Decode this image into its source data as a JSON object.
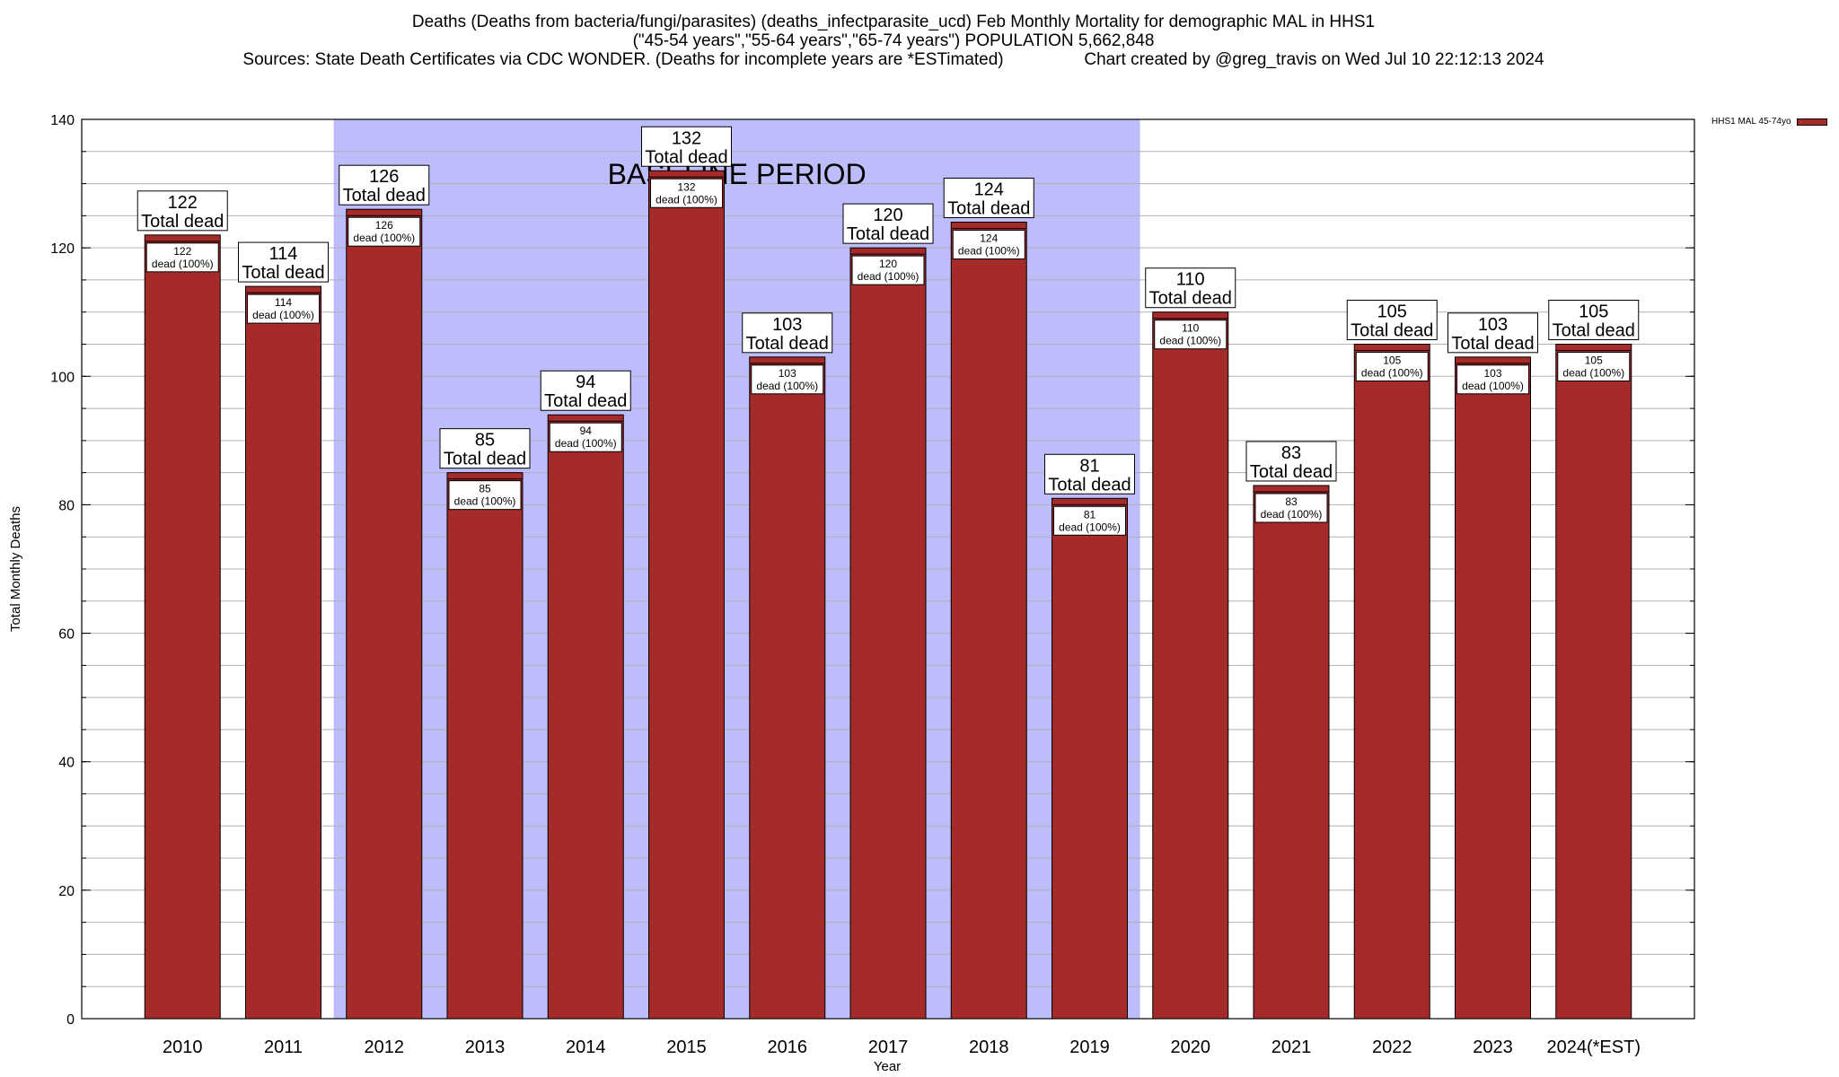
{
  "header": {
    "line1": "Deaths (Deaths from bacteria/fungi/parasites) (deaths_infectparasite_ucd) Feb Monthly Mortality for demographic MAL in HHS1",
    "line2": "(\"45-54 years\",\"55-64 years\",\"65-74 years\") POPULATION 5,662,848",
    "line3": "Sources: State Death Certificates via CDC WONDER. (Deaths for incomplete years are *ESTimated)                 Chart created by @greg_travis on Wed Jul 10 22:12:13 2024"
  },
  "legend": {
    "label": "HHS1 MAL 45-74yo"
  },
  "colors": {
    "bar": "#a52a2a",
    "baseline_band": "#bdbdfb",
    "grid": "#b0b0b0"
  },
  "chart_data": {
    "type": "bar",
    "xlabel": "Year",
    "ylabel": "Total Monthly Deaths",
    "ylim": [
      0,
      140
    ],
    "yticks": [
      0,
      20,
      40,
      60,
      80,
      100,
      120,
      140
    ],
    "grid": true,
    "legend_position": "top-right",
    "categories": [
      "2010",
      "2011",
      "2012",
      "2013",
      "2014",
      "2015",
      "2016",
      "2017",
      "2018",
      "2019",
      "2020",
      "2021",
      "2022",
      "2023",
      "2024(*EST)"
    ],
    "series": [
      {
        "name": "HHS1 MAL 45-74yo",
        "values": [
          122,
          114,
          126,
          85,
          94,
          132,
          103,
          120,
          124,
          81,
          110,
          83,
          105,
          103,
          105
        ]
      }
    ],
    "total_label": "Total dead",
    "inner_label": "dead (100%)",
    "annotation": {
      "text": "BASELINE PERIOD",
      "from_category": "2012",
      "to_category": "2019"
    }
  }
}
